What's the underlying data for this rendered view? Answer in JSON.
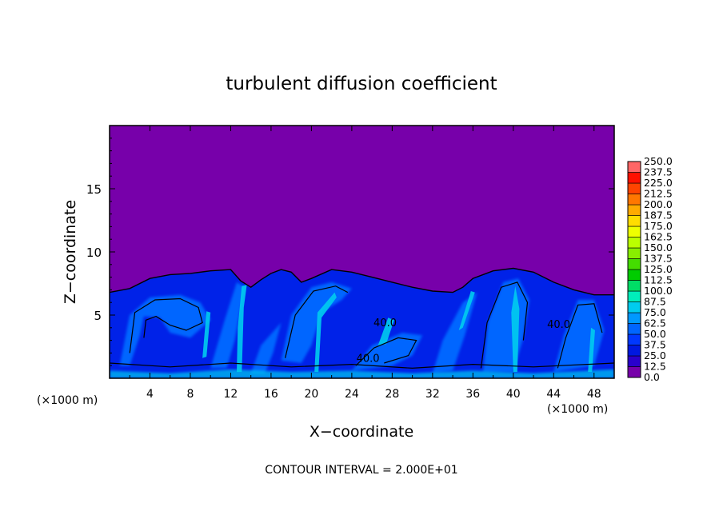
{
  "chart_data": {
    "type": "heatmap",
    "title": "turbulent diffusion coefficient",
    "xlabel": "X−coordinate",
    "ylabel": "Z−coordinate",
    "x_unit_label": "(×1000 m)",
    "z_unit_label": "(×1000 m)",
    "xlim": [
      0,
      50
    ],
    "ylim": [
      0,
      20
    ],
    "x_ticks": [
      4,
      8,
      12,
      16,
      20,
      24,
      28,
      32,
      36,
      40,
      44,
      48
    ],
    "y_ticks": [
      5,
      10,
      15
    ],
    "contour_interval_text": "CONTOUR INTERVAL = 2.000E+01",
    "contour_labels": [
      {
        "text": "40.0",
        "x": 25.6,
        "z": 1.3
      },
      {
        "text": "40.0",
        "x": 44.5,
        "z": 4.0
      },
      {
        "text": "40.0",
        "x": 27.3,
        "z": 4.1
      }
    ],
    "colorbar": {
      "levels": [
        "0.0",
        "12.5",
        "25.0",
        "37.5",
        "50.0",
        "62.5",
        "75.0",
        "87.5",
        "100.0",
        "112.5",
        "125.0",
        "137.5",
        "150.0",
        "162.5",
        "175.0",
        "187.5",
        "200.0",
        "212.5",
        "225.0",
        "237.5",
        "250.0"
      ],
      "colors": [
        "#7700aa",
        "#2a00cc",
        "#0018e0",
        "#0038ff",
        "#0066ff",
        "#0099ff",
        "#00ccee",
        "#00eebb",
        "#00dd66",
        "#00cc00",
        "#44dd00",
        "#88ee00",
        "#bbff00",
        "#eeff00",
        "#ffdd00",
        "#ffaa00",
        "#ff7700",
        "#ff4400",
        "#ff1100",
        "#ff6666"
      ]
    },
    "colors": {
      "background": "#7700aa",
      "low": "#0022e8",
      "mid": "#0066ff",
      "high": "#00ccee",
      "contour": "#000000"
    }
  }
}
